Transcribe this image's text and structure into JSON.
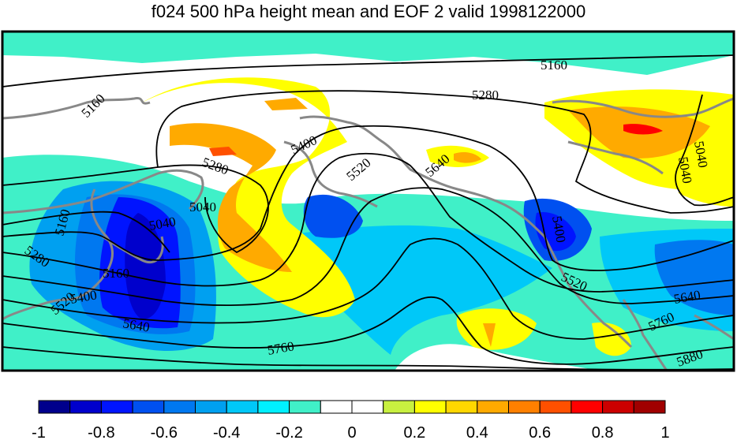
{
  "title": "f024 500 hPa height mean and EOF 2 valid 1998122000",
  "contour_levels": [
    5040,
    5160,
    5280,
    5400,
    5520,
    5640,
    5760,
    5880
  ],
  "contour_labels": [
    "5160",
    "5280",
    "5400",
    "5520",
    "5640",
    "5040",
    "5040",
    "5040",
    "5160",
    "5280",
    "5160",
    "5400",
    "5520",
    "5640",
    "5160",
    "5040",
    "5280",
    "5400",
    "5520",
    "5640",
    "5760",
    "5760",
    "5880"
  ],
  "colorbar": {
    "tick_labels": [
      "-1",
      "-0.8",
      "-0.6",
      "-0.4",
      "-0.2",
      "0",
      "0.2",
      "0.4",
      "0.6",
      "0.8",
      "1"
    ],
    "colors": [
      "#00008c",
      "#0000cc",
      "#0014ff",
      "#0050f0",
      "#0078f0",
      "#00a0f0",
      "#00c8f8",
      "#00f0ff",
      "#40f0c8",
      "#ffffff",
      "#ffffff",
      "#c8f040",
      "#ffff00",
      "#ffd700",
      "#ffaa00",
      "#ff8000",
      "#ff5000",
      "#ff0000",
      "#cc0000",
      "#a00000"
    ]
  },
  "colors": {
    "land_outline": "#888888",
    "contour_line": "#000000",
    "frame": "#000000"
  }
}
